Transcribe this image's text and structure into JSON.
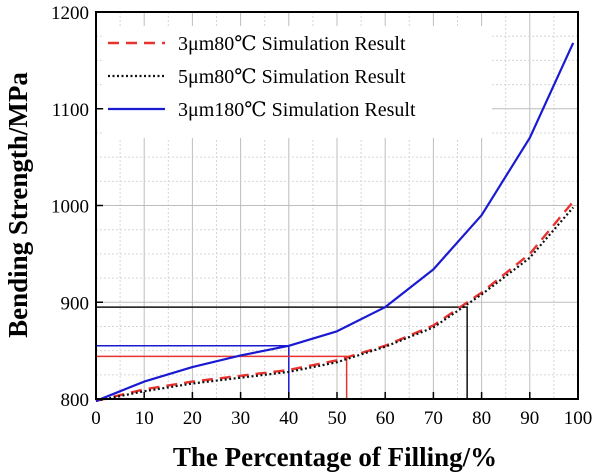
{
  "chart_data": {
    "type": "line",
    "title": "",
    "xlabel": "The Percentage of Filling/%",
    "ylabel": "Bending Strength/MPa",
    "xlim": [
      0,
      100
    ],
    "ylim": [
      800,
      1200
    ],
    "xticks": [
      0,
      10,
      20,
      30,
      40,
      50,
      60,
      70,
      80,
      90,
      100
    ],
    "yticks": [
      800,
      900,
      1000,
      1100,
      1200
    ],
    "grid": true,
    "legend_position": "top-right",
    "series": [
      {
        "name": "3μm80℃ Simulation Result",
        "style": "dashed",
        "color": "#e8322f",
        "x": [
          0,
          10,
          20,
          30,
          40,
          50,
          60,
          70,
          80,
          90,
          99
        ],
        "y": [
          798,
          810,
          818,
          824,
          830,
          840,
          855,
          876,
          910,
          950,
          1004
        ]
      },
      {
        "name": "5μm80℃ Simulation Result",
        "style": "dotted",
        "color": "#111111",
        "x": [
          0,
          10,
          20,
          30,
          40,
          50,
          60,
          70,
          80,
          90,
          99
        ],
        "y": [
          798,
          808,
          816,
          822,
          828,
          838,
          854,
          874,
          908,
          946,
          998
        ]
      },
      {
        "name": "3μm180℃ Simulation Result",
        "style": "solid",
        "color": "#1a1ad2",
        "x": [
          0,
          10,
          20,
          30,
          40,
          50,
          60,
          70,
          80,
          90,
          99
        ],
        "y": [
          798,
          818,
          833,
          845,
          855,
          870,
          895,
          934,
          990,
          1070,
          1168
        ]
      }
    ],
    "reference_lines": [
      {
        "color": "#1a1ad2",
        "x": 40,
        "y": 855
      },
      {
        "color": "#e8322f",
        "x": 52,
        "y": 844
      },
      {
        "color": "#111111",
        "x": 77,
        "y": 895
      }
    ]
  }
}
